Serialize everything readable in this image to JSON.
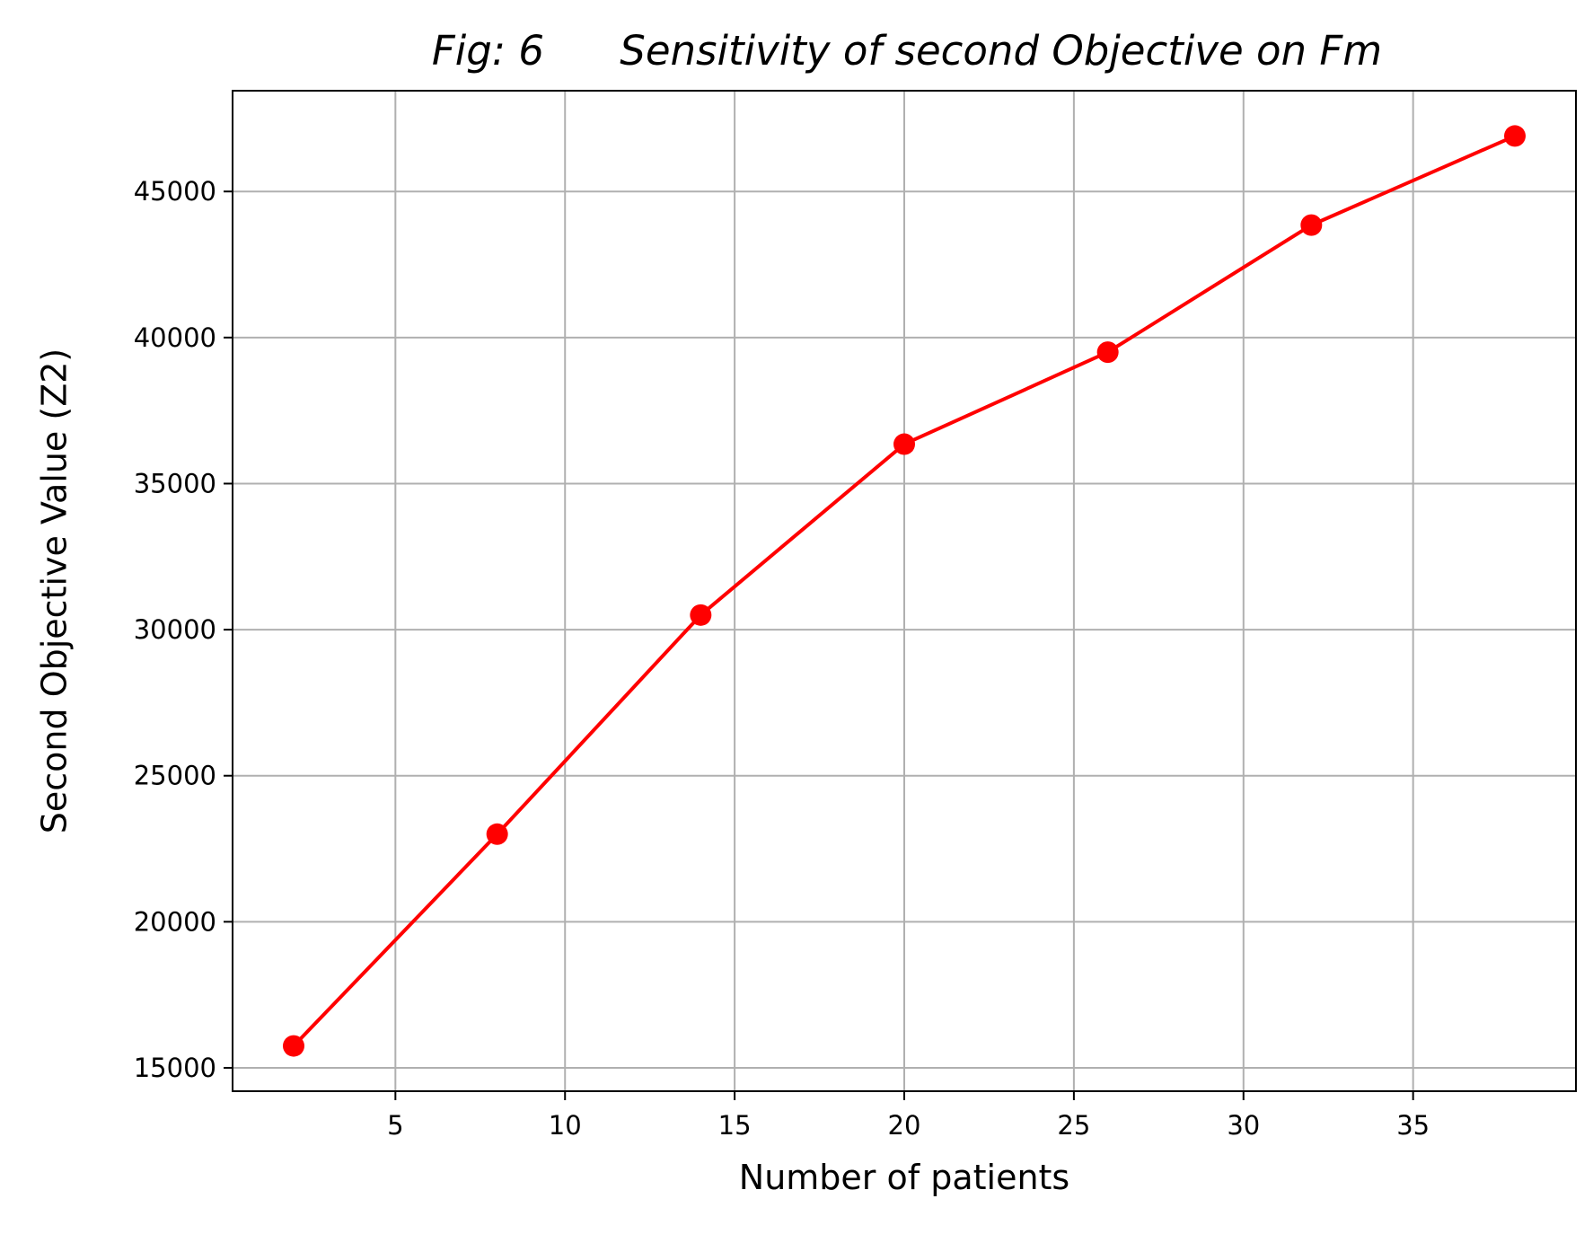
{
  "chart_data": {
    "type": "line",
    "title_prefix": "Fig: 6",
    "title": "Sensitivity of second Objective on Fm",
    "xlabel": "Number of patients",
    "ylabel": "Second Objective Value (Z2)",
    "x": [
      2,
      8,
      14,
      20,
      26,
      32,
      38
    ],
    "series": [
      {
        "name": "",
        "values": [
          15750,
          23000,
          30500,
          36350,
          39500,
          43850,
          46900
        ],
        "color": "#ff0000",
        "marker": "circle"
      }
    ],
    "xlim": [
      0.2,
      39.8
    ],
    "ylim": [
      14200,
      48450
    ],
    "xticks": [
      5,
      10,
      15,
      20,
      25,
      30,
      35
    ],
    "yticks": [
      15000,
      20000,
      25000,
      30000,
      35000,
      40000,
      45000
    ],
    "grid": true
  }
}
